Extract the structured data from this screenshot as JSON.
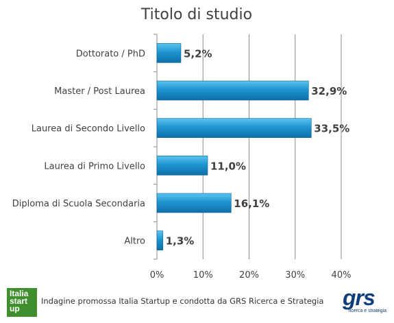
{
  "chart_data": {
    "type": "bar",
    "orientation": "horizontal",
    "title": "Titolo di studio",
    "categories": [
      "Dottorato / PhD",
      "Master / Post Laurea",
      "Laurea di Secondo Livello",
      "Laurea di Primo Livello",
      "Diploma di Scuola Secondaria",
      "Altro"
    ],
    "values": [
      5.2,
      32.9,
      33.5,
      11.0,
      16.1,
      1.3
    ],
    "value_labels": [
      "5,2%",
      "32,9%",
      "33,5%",
      "11,0%",
      "16,1%",
      "1,3%"
    ],
    "xlim": [
      0,
      40
    ],
    "x_ticks": [
      "0%",
      "10%",
      "20%",
      "30%",
      "40%"
    ],
    "grid": true,
    "bar_color": "#1f95d0"
  },
  "footer": {
    "text": "Indagine promossa Italia Startup e condotta da GRS Ricerca e Strategia",
    "logo_left": [
      "Italia",
      "start",
      "up"
    ],
    "logo_right": "grs",
    "logo_right_sub": "ricerca e strategia"
  }
}
